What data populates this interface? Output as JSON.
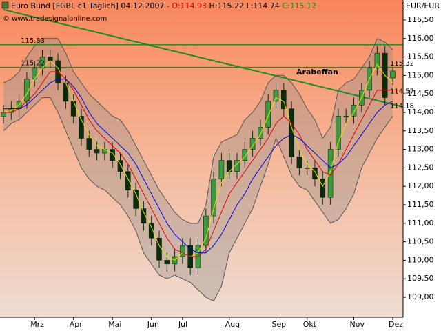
{
  "chart_data": {
    "type": "candlestick",
    "header": {
      "title": "Euro Bund [FGBL c1  Täglich]",
      "date": "04.12.2007",
      "open": "O:114.93",
      "high": "H:115.22",
      "low": "L:114.74",
      "close": "C:115.12"
    },
    "copyright": "© www.tradesignalonline.com",
    "axis_unit": "EUR/EUR",
    "categories": [
      null,
      null,
      null,
      null,
      "Mrz",
      null,
      null,
      null,
      null,
      "Apr",
      null,
      null,
      null,
      null,
      "Mai",
      null,
      null,
      null,
      null,
      "Jun",
      null,
      null,
      null,
      "Jul",
      null,
      null,
      null,
      null,
      null,
      "Aug",
      null,
      null,
      null,
      null,
      null,
      "Sep",
      null,
      null,
      null,
      "Okt",
      null,
      null,
      null,
      null,
      null,
      "Nov",
      null,
      null,
      null,
      null,
      "Dez"
    ],
    "open": [
      113.9,
      114.0,
      114.1,
      114.3,
      114.9,
      115.2,
      115.5,
      115.4,
      114.8,
      114.3,
      113.9,
      113.3,
      113.0,
      112.9,
      113.0,
      112.7,
      112.4,
      111.9,
      111.4,
      111.0,
      110.6,
      110.0,
      109.9,
      110.1,
      110.4,
      109.8,
      110.4,
      111.2,
      112.2,
      112.7,
      112.4,
      112.7,
      113.0,
      113.3,
      113.6,
      114.3,
      114.6,
      114.1,
      112.8,
      112.5,
      112.5,
      112.2,
      111.7,
      113.0,
      113.9,
      113.9,
      114.2,
      114.6,
      115.2,
      115.6,
      114.93
    ],
    "high": [
      114.2,
      114.3,
      114.5,
      115.1,
      115.4,
      115.7,
      115.7,
      115.6,
      115.0,
      114.5,
      114.1,
      113.5,
      113.2,
      113.2,
      113.2,
      112.9,
      112.6,
      112.1,
      111.6,
      111.2,
      110.8,
      110.2,
      110.3,
      110.6,
      110.6,
      110.6,
      111.4,
      112.4,
      112.9,
      112.9,
      112.9,
      113.2,
      113.5,
      113.8,
      114.5,
      114.8,
      114.8,
      114.3,
      113.0,
      112.7,
      112.7,
      112.4,
      113.2,
      114.1,
      114.1,
      114.4,
      114.8,
      115.4,
      115.8,
      115.8,
      115.22
    ],
    "low": [
      113.7,
      113.8,
      113.9,
      114.1,
      114.7,
      115.0,
      115.2,
      114.6,
      114.1,
      113.7,
      113.1,
      112.8,
      112.7,
      112.7,
      112.5,
      112.2,
      111.7,
      111.2,
      110.8,
      110.4,
      109.8,
      109.7,
      109.7,
      109.9,
      109.6,
      109.6,
      110.2,
      111.0,
      112.0,
      112.2,
      112.2,
      112.5,
      112.8,
      113.1,
      113.4,
      114.1,
      113.9,
      112.6,
      112.3,
      112.3,
      112.0,
      111.5,
      111.5,
      112.8,
      113.7,
      113.7,
      114.0,
      114.4,
      115.0,
      114.2,
      114.74
    ],
    "close": [
      114.0,
      114.1,
      114.3,
      114.9,
      115.2,
      115.5,
      115.4,
      114.8,
      114.3,
      113.9,
      113.3,
      113.0,
      112.9,
      113.0,
      112.7,
      112.4,
      111.9,
      111.4,
      111.0,
      110.6,
      110.0,
      109.9,
      110.1,
      110.4,
      109.8,
      110.4,
      111.2,
      112.2,
      112.7,
      112.4,
      112.7,
      113.0,
      113.3,
      113.6,
      114.3,
      114.6,
      114.1,
      112.8,
      112.5,
      112.5,
      112.2,
      111.7,
      113.0,
      113.9,
      113.9,
      114.2,
      114.6,
      115.2,
      115.6,
      114.4,
      115.12
    ],
    "up_color": "#3f9a3f",
    "down_color": "#0d2a0d",
    "band": {
      "color": "#555555",
      "upper": [
        114.8,
        114.9,
        115.1,
        115.5,
        115.8,
        116.0,
        116.0,
        116.0,
        115.6,
        115.1,
        114.8,
        114.5,
        114.3,
        114.1,
        113.9,
        113.8,
        113.5,
        113.1,
        112.7,
        112.3,
        111.9,
        111.6,
        111.3,
        111.1,
        111.0,
        111.0,
        111.5,
        112.8,
        113.2,
        113.3,
        113.4,
        113.8,
        114.0,
        114.3,
        114.8,
        115.0,
        115.0,
        114.8,
        114.5,
        114.1,
        113.8,
        113.3,
        113.6,
        114.6,
        114.8,
        114.9,
        115.2,
        115.5,
        116.0,
        115.9,
        115.7
      ],
      "lower": [
        113.5,
        113.7,
        113.8,
        114.0,
        114.2,
        114.4,
        114.4,
        114.0,
        113.5,
        113.0,
        112.5,
        112.2,
        112.0,
        111.9,
        111.7,
        111.5,
        111.2,
        110.8,
        110.2,
        109.9,
        109.6,
        109.5,
        109.6,
        109.5,
        109.4,
        109.2,
        109.0,
        108.9,
        109.3,
        110.2,
        110.6,
        111.0,
        111.4,
        112.0,
        112.6,
        113.3,
        112.8,
        112.3,
        112.0,
        111.9,
        111.6,
        111.3,
        111.0,
        111.1,
        111.4,
        111.8,
        112.5,
        112.9,
        113.3,
        113.6,
        113.9
      ]
    },
    "series": [
      {
        "color": "#e6e600",
        "values": [
          114.0,
          114.05,
          114.2,
          114.5,
          114.9,
          115.2,
          115.4,
          115.2,
          114.8,
          114.3,
          113.8,
          113.4,
          113.1,
          113.0,
          112.9,
          112.6,
          112.2,
          111.8,
          111.3,
          110.9,
          110.4,
          110.1,
          110.0,
          110.2,
          110.1,
          110.2,
          110.6,
          111.4,
          112.1,
          112.4,
          112.6,
          112.8,
          113.1,
          113.4,
          113.9,
          114.4,
          114.3,
          113.6,
          113.0,
          112.6,
          112.4,
          112.0,
          112.4,
          113.2,
          113.7,
          114.0,
          114.4,
          114.9,
          115.3,
          115.0,
          114.8
        ]
      },
      {
        "color": "#e00000",
        "values": [
          114.0,
          114.0,
          114.1,
          114.3,
          114.5,
          114.8,
          115.1,
          115.1,
          114.9,
          114.6,
          114.2,
          113.8,
          113.5,
          113.3,
          113.1,
          112.9,
          112.6,
          112.2,
          111.8,
          111.4,
          111.0,
          110.6,
          110.3,
          110.2,
          110.1,
          110.1,
          110.3,
          110.8,
          111.3,
          111.8,
          112.1,
          112.4,
          112.7,
          113.0,
          113.3,
          113.7,
          113.9,
          113.7,
          113.4,
          113.0,
          112.7,
          112.4,
          112.3,
          112.6,
          113.0,
          113.4,
          113.8,
          114.2,
          114.6,
          114.6,
          114.6
        ]
      },
      {
        "color": "#0000e0",
        "values": [
          114.1,
          114.1,
          114.1,
          114.2,
          114.4,
          114.6,
          114.8,
          114.9,
          114.9,
          114.7,
          114.4,
          114.0,
          113.7,
          113.5,
          113.3,
          113.1,
          112.9,
          112.6,
          112.2,
          111.8,
          111.4,
          111.0,
          110.7,
          110.5,
          110.3,
          110.2,
          110.2,
          110.4,
          110.7,
          111.1,
          111.5,
          111.8,
          112.2,
          112.5,
          112.8,
          113.1,
          113.3,
          113.4,
          113.3,
          113.1,
          112.9,
          112.7,
          112.5,
          112.6,
          112.8,
          113.1,
          113.4,
          113.7,
          114.0,
          114.2,
          114.3
        ]
      }
    ],
    "hlines": [
      {
        "value": 115.83,
        "label": "115.83"
      },
      {
        "value": 115.22,
        "label": "115.22"
      }
    ],
    "hline_color": "#1f8a1f",
    "trendline": {
      "color": "#1f8a1f",
      "values": [
        116.78,
        114.22
      ]
    },
    "annotation": "Arabeffan",
    "right_labels": [
      115.32,
      114.57,
      114.18
    ],
    "ylim": [
      108.46,
      117.04
    ],
    "yticks": [
      {
        "value": 109.0,
        "label": "109,00"
      },
      {
        "value": 109.5,
        "label": "109,50"
      },
      {
        "value": 110.0,
        "label": "110,00"
      },
      {
        "value": 110.5,
        "label": "110,50"
      },
      {
        "value": 111.0,
        "label": "111,00"
      },
      {
        "value": 111.5,
        "label": "111,50"
      },
      {
        "value": 112.0,
        "label": "112,00"
      },
      {
        "value": 112.5,
        "label": "112,50"
      },
      {
        "value": 113.0,
        "label": "113,00"
      },
      {
        "value": 113.5,
        "label": "113,50"
      },
      {
        "value": 114.0,
        "label": "114,00"
      },
      {
        "value": 114.5,
        "label": "114,50"
      },
      {
        "value": 115.0,
        "label": "115,00"
      },
      {
        "value": 115.5,
        "label": "115,50"
      },
      {
        "value": 116.0,
        "label": "116,00"
      },
      {
        "value": 116.5,
        "label": "116,50"
      }
    ]
  }
}
